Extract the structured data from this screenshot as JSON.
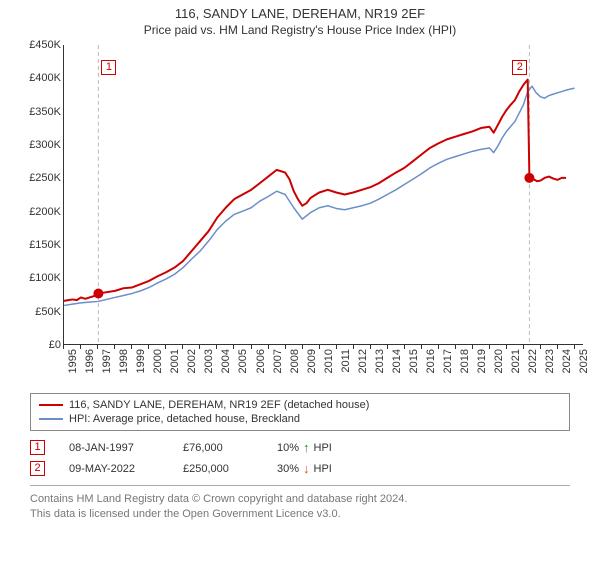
{
  "title": "116, SANDY LANE, DEREHAM, NR19 2EF",
  "subtitle": "Price paid vs. HM Land Registry's House Price Index (HPI)",
  "chart": {
    "type": "line",
    "background_color": "#ffffff",
    "text_color": "#333333",
    "title_fontsize": 13,
    "label_fontsize": 11,
    "ylim": [
      0,
      450000
    ],
    "ytick_step": 50000,
    "ytick_prefix": "£",
    "ytick_suffix": "K",
    "xlim": [
      1995,
      2025.5
    ],
    "xticks": [
      1995,
      1996,
      1997,
      1998,
      1999,
      2000,
      2001,
      2002,
      2003,
      2004,
      2005,
      2006,
      2007,
      2008,
      2009,
      2010,
      2011,
      2012,
      2013,
      2014,
      2015,
      2016,
      2017,
      2018,
      2019,
      2020,
      2021,
      2022,
      2023,
      2024,
      2025
    ],
    "axis_color": "#333333",
    "marker_line_color": "#bbbbbb",
    "marker_color": "#cc0000",
    "marker_point_radius": 5,
    "series": [
      {
        "name": "property",
        "label": "116, SANDY LANE, DEREHAM, NR19 2EF (detached house)",
        "color": "#cc0000",
        "line_width": 2.0,
        "data": [
          [
            1995.0,
            65000
          ],
          [
            1995.25,
            66000
          ],
          [
            1995.5,
            67000
          ],
          [
            1995.75,
            66000
          ],
          [
            1996.0,
            70000
          ],
          [
            1996.25,
            68000
          ],
          [
            1996.5,
            70000
          ],
          [
            1996.75,
            72000
          ],
          [
            1997.02,
            76000
          ],
          [
            1997.5,
            78000
          ],
          [
            1998.0,
            80000
          ],
          [
            1998.5,
            84000
          ],
          [
            1999.0,
            85000
          ],
          [
            1999.5,
            90000
          ],
          [
            2000.0,
            95000
          ],
          [
            2000.5,
            102000
          ],
          [
            2001.0,
            108000
          ],
          [
            2001.5,
            115000
          ],
          [
            2002.0,
            125000
          ],
          [
            2002.5,
            140000
          ],
          [
            2003.0,
            155000
          ],
          [
            2003.5,
            170000
          ],
          [
            2004.0,
            190000
          ],
          [
            2004.5,
            205000
          ],
          [
            2005.0,
            218000
          ],
          [
            2005.5,
            225000
          ],
          [
            2006.0,
            232000
          ],
          [
            2006.5,
            242000
          ],
          [
            2007.0,
            252000
          ],
          [
            2007.5,
            262000
          ],
          [
            2008.0,
            258000
          ],
          [
            2008.25,
            248000
          ],
          [
            2008.5,
            230000
          ],
          [
            2008.75,
            218000
          ],
          [
            2009.0,
            208000
          ],
          [
            2009.25,
            212000
          ],
          [
            2009.5,
            220000
          ],
          [
            2010.0,
            228000
          ],
          [
            2010.5,
            232000
          ],
          [
            2011.0,
            228000
          ],
          [
            2011.5,
            225000
          ],
          [
            2012.0,
            228000
          ],
          [
            2012.5,
            232000
          ],
          [
            2013.0,
            236000
          ],
          [
            2013.5,
            242000
          ],
          [
            2014.0,
            250000
          ],
          [
            2014.5,
            258000
          ],
          [
            2015.0,
            265000
          ],
          [
            2015.5,
            275000
          ],
          [
            2016.0,
            285000
          ],
          [
            2016.5,
            295000
          ],
          [
            2017.0,
            302000
          ],
          [
            2017.5,
            308000
          ],
          [
            2018.0,
            312000
          ],
          [
            2018.5,
            316000
          ],
          [
            2019.0,
            320000
          ],
          [
            2019.5,
            325000
          ],
          [
            2020.0,
            327000
          ],
          [
            2020.25,
            318000
          ],
          [
            2020.5,
            330000
          ],
          [
            2020.75,
            342000
          ],
          [
            2021.0,
            352000
          ],
          [
            2021.25,
            360000
          ],
          [
            2021.5,
            367000
          ],
          [
            2021.75,
            380000
          ],
          [
            2022.0,
            390000
          ],
          [
            2022.25,
            398000
          ],
          [
            2022.35,
            250000
          ],
          [
            2022.6,
            248000
          ],
          [
            2022.8,
            245000
          ],
          [
            2023.0,
            246000
          ],
          [
            2023.25,
            250000
          ],
          [
            2023.5,
            252000
          ],
          [
            2023.75,
            249000
          ],
          [
            2024.0,
            247000
          ],
          [
            2024.25,
            250000
          ],
          [
            2024.5,
            250000
          ]
        ]
      },
      {
        "name": "hpi",
        "label": "HPI: Average price, detached house, Breckland",
        "color": "#6b8fc9",
        "line_width": 1.5,
        "data": [
          [
            1995.0,
            58000
          ],
          [
            1995.5,
            60000
          ],
          [
            1996.0,
            62000
          ],
          [
            1996.5,
            63000
          ],
          [
            1997.0,
            64000
          ],
          [
            1997.5,
            67000
          ],
          [
            1998.0,
            70000
          ],
          [
            1998.5,
            73000
          ],
          [
            1999.0,
            76000
          ],
          [
            1999.5,
            80000
          ],
          [
            2000.0,
            85000
          ],
          [
            2000.5,
            92000
          ],
          [
            2001.0,
            98000
          ],
          [
            2001.5,
            105000
          ],
          [
            2002.0,
            115000
          ],
          [
            2002.5,
            128000
          ],
          [
            2003.0,
            140000
          ],
          [
            2003.5,
            155000
          ],
          [
            2004.0,
            172000
          ],
          [
            2004.5,
            185000
          ],
          [
            2005.0,
            195000
          ],
          [
            2005.5,
            200000
          ],
          [
            2006.0,
            205000
          ],
          [
            2006.5,
            215000
          ],
          [
            2007.0,
            222000
          ],
          [
            2007.5,
            230000
          ],
          [
            2008.0,
            225000
          ],
          [
            2008.5,
            205000
          ],
          [
            2009.0,
            188000
          ],
          [
            2009.5,
            198000
          ],
          [
            2010.0,
            205000
          ],
          [
            2010.5,
            208000
          ],
          [
            2011.0,
            204000
          ],
          [
            2011.5,
            202000
          ],
          [
            2012.0,
            205000
          ],
          [
            2012.5,
            208000
          ],
          [
            2013.0,
            212000
          ],
          [
            2013.5,
            218000
          ],
          [
            2014.0,
            225000
          ],
          [
            2014.5,
            232000
          ],
          [
            2015.0,
            240000
          ],
          [
            2015.5,
            248000
          ],
          [
            2016.0,
            256000
          ],
          [
            2016.5,
            265000
          ],
          [
            2017.0,
            272000
          ],
          [
            2017.5,
            278000
          ],
          [
            2018.0,
            282000
          ],
          [
            2018.5,
            286000
          ],
          [
            2019.0,
            290000
          ],
          [
            2019.5,
            293000
          ],
          [
            2020.0,
            295000
          ],
          [
            2020.25,
            288000
          ],
          [
            2020.5,
            298000
          ],
          [
            2020.75,
            310000
          ],
          [
            2021.0,
            320000
          ],
          [
            2021.5,
            335000
          ],
          [
            2022.0,
            360000
          ],
          [
            2022.25,
            380000
          ],
          [
            2022.5,
            388000
          ],
          [
            2022.75,
            378000
          ],
          [
            2023.0,
            372000
          ],
          [
            2023.25,
            370000
          ],
          [
            2023.5,
            374000
          ],
          [
            2023.75,
            376000
          ],
          [
            2024.0,
            378000
          ],
          [
            2024.25,
            380000
          ],
          [
            2024.5,
            382000
          ],
          [
            2025.0,
            385000
          ]
        ]
      }
    ],
    "markers": [
      {
        "id": "1",
        "x": 1997.02,
        "y": 76000
      },
      {
        "id": "2",
        "x": 2022.35,
        "y": 250000
      }
    ]
  },
  "legend": {
    "items": [
      {
        "color": "#cc0000",
        "label": "116, SANDY LANE, DEREHAM, NR19 2EF (detached house)"
      },
      {
        "color": "#6b8fc9",
        "label": "HPI: Average price, detached house, Breckland"
      }
    ]
  },
  "sales": [
    {
      "id": "1",
      "date": "08-JAN-1997",
      "price": "£76,000",
      "delta_pct": "10%",
      "delta_dir": "up",
      "delta_hpi": "HPI"
    },
    {
      "id": "2",
      "date": "09-MAY-2022",
      "price": "£250,000",
      "delta_pct": "30%",
      "delta_dir": "down",
      "delta_hpi": "HPI"
    }
  ],
  "footer": {
    "line1": "Contains HM Land Registry data © Crown copyright and database right 2024.",
    "line2": "This data is licensed under the Open Government Licence v3.0."
  },
  "colors": {
    "delta_up": "#2a8a2a",
    "delta_down": "#cc5522"
  }
}
